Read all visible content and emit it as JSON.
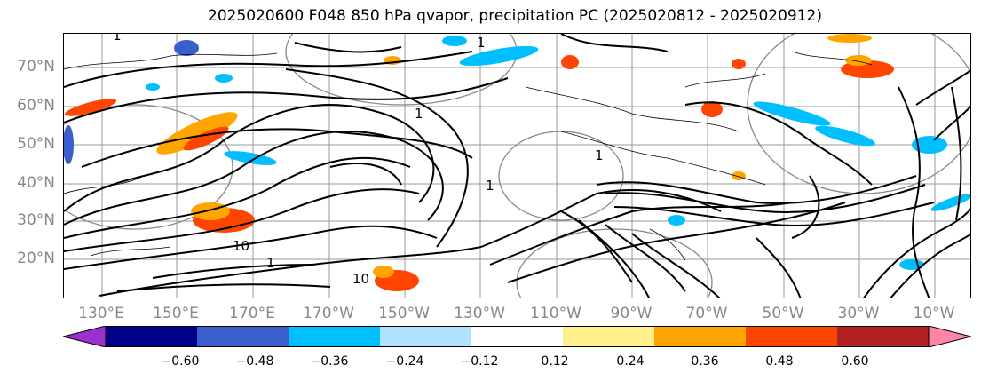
{
  "title": "2025020600 F048 850 hPa qvapor, precipitation PC (2025020812 - 2025020912)",
  "map": {
    "lat_labels": [
      "70°N",
      "60°N",
      "50°N",
      "40°N",
      "30°N",
      "20°N"
    ],
    "lat_values": [
      70,
      60,
      50,
      40,
      30,
      20
    ],
    "lon_labels": [
      "130°E",
      "150°E",
      "170°E",
      "170°W",
      "150°W",
      "130°W",
      "110°W",
      "90°W",
      "70°W",
      "50°W",
      "30°W",
      "10°W"
    ],
    "grid": true,
    "contour_labels": [
      "1",
      "1",
      "1",
      "1",
      "1",
      "1",
      "10",
      "10"
    ],
    "background_color": "#ffffff",
    "contour_color": "#000000",
    "grid_color": "#999999"
  },
  "colorbar": {
    "colors": [
      "#9b30d0",
      "#00008b",
      "#3a5fcd",
      "#00bfff",
      "#b0e2ff",
      "#ffffff",
      "#fff08c",
      "#ffa500",
      "#ff4500",
      "#b22222",
      "#ff85a8"
    ],
    "ticks": [
      "−0.60",
      "−0.48",
      "−0.36",
      "−0.24",
      "−0.12",
      "0.12",
      "0.24",
      "0.36",
      "0.48",
      "0.60"
    ],
    "extend": "both"
  }
}
